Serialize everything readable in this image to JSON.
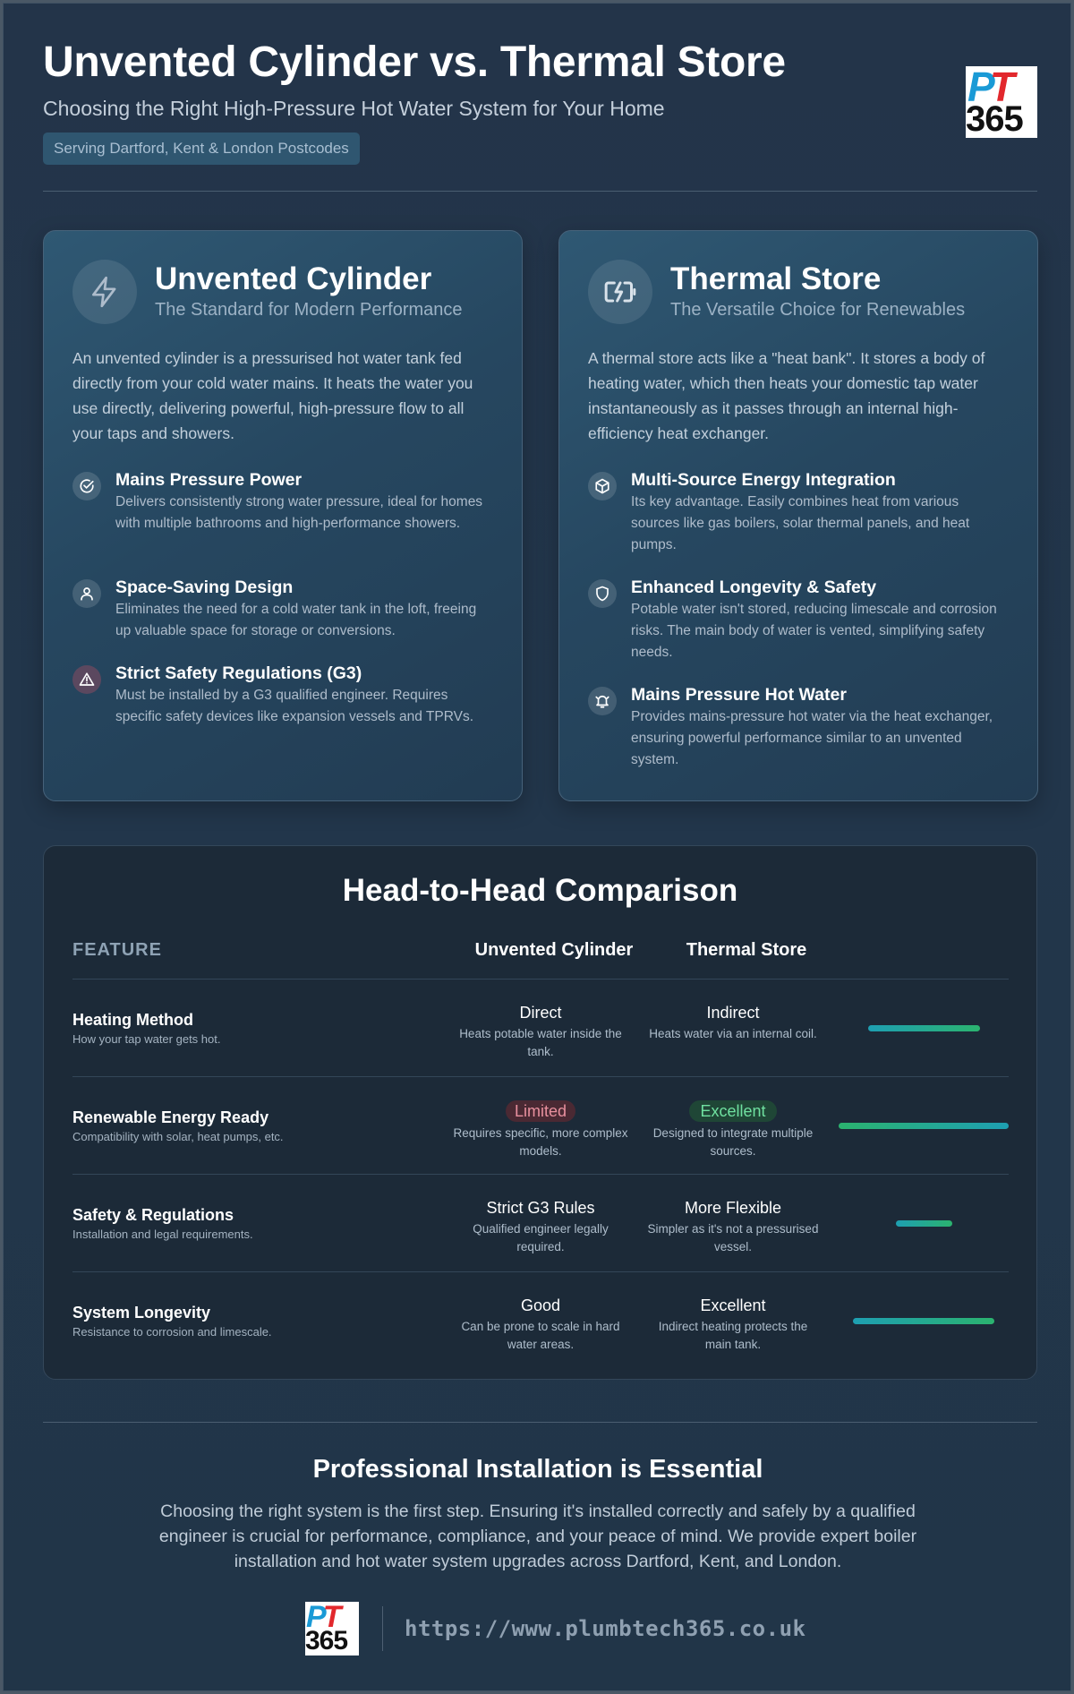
{
  "header": {
    "title": "Unvented Cylinder vs. Thermal Store",
    "subtitle": "Choosing the Right High-Pressure Hot Water System for Your Home",
    "tag": "Serving Dartford, Kent & London Postcodes",
    "logo_top": "PT",
    "logo_bottom": "365"
  },
  "cards": {
    "unvented": {
      "icon": "lightning-icon",
      "title": "Unvented Cylinder",
      "subtitle": "The Standard for Modern Performance",
      "description": "An unvented cylinder is a pressurised hot water tank fed directly from your cold water mains. It heats the water you use directly, delivering powerful, high-pressure flow to all your taps and showers.",
      "features": [
        {
          "icon": "check-circle-icon",
          "title": "Mains Pressure Power",
          "desc": "Delivers consistently strong water pressure, ideal for homes with multiple bathrooms and high-performance showers."
        },
        {
          "icon": "user-icon",
          "title": "Space-Saving Design",
          "desc": "Eliminates the need for a cold water tank in the loft, freeing up valuable space for storage or conversions."
        },
        {
          "icon": "warning-icon",
          "title": "Strict Safety Regulations (G3)",
          "desc": "Must be installed by a G3 qualified engineer. Requires specific safety devices like expansion vessels and TPRVs."
        }
      ]
    },
    "thermal": {
      "icon": "battery-charging-icon",
      "title": "Thermal Store",
      "subtitle": "The Versatile Choice for Renewables",
      "description": "A thermal store acts like a \"heat bank\". It stores a body of heating water, which then heats your domestic tap water instantaneously as it passes through an internal high-efficiency heat exchanger.",
      "features": [
        {
          "icon": "cube-icon",
          "title": "Multi-Source Energy Integration",
          "desc": "Its key advantage. Easily combines heat from various sources like gas boilers, solar thermal panels, and heat pumps."
        },
        {
          "icon": "shield-icon",
          "title": "Enhanced Longevity & Safety",
          "desc": "Potable water isn't stored, reducing limescale and corrosion risks. The main body of water is vented, simplifying safety needs."
        },
        {
          "icon": "bell-icon",
          "title": "Mains Pressure Hot Water",
          "desc": "Provides mains-pressure hot water via the heat exchanger, ensuring powerful performance similar to an unvented system."
        }
      ]
    }
  },
  "comparison": {
    "title": "Head-to-Head Comparison",
    "headers": {
      "feature": "FEATURE",
      "col1": "Unvented Cylinder",
      "col2": "Thermal Store"
    },
    "rows": [
      {
        "name": "Heating Method",
        "desc": "How your tap water gets hot.",
        "a_val": "Direct",
        "a_desc": "Heats potable water inside the tank.",
        "b_val": "Indirect",
        "b_desc": "Heats water via an internal coil.",
        "bar_fraction": 0.66
      },
      {
        "name": "Renewable Energy Ready",
        "desc": "Compatibility with solar, heat pumps, etc.",
        "a_val": "Limited",
        "a_desc": "Requires specific, more complex models.",
        "b_val": "Excellent",
        "b_desc": "Designed to integrate multiple sources.",
        "bar_fraction": 1.0
      },
      {
        "name": "Safety & Regulations",
        "desc": "Installation and legal requirements.",
        "a_val": "Strict G3 Rules",
        "a_desc": "Qualified engineer legally required.",
        "b_val": "More Flexible",
        "b_desc": "Simpler as it's not a pressurised vessel.",
        "bar_fraction": 0.33
      },
      {
        "name": "System Longevity",
        "desc": "Resistance to corrosion and limescale.",
        "a_val": "Good",
        "a_desc": "Can be prone to scale in hard water areas.",
        "b_val": "Excellent",
        "b_desc": "Indirect heating protects the main tank.",
        "bar_fraction": 0.83
      }
    ]
  },
  "footer": {
    "title": "Professional Installation is Essential",
    "text": "Choosing the right system is the first step. Ensuring it's installed correctly and safely by a qualified engineer is crucial for performance, compliance, and your peace of mind. We provide expert boiler installation and hot water system upgrades across Dartford, Kent, and London.",
    "url": "https://www.plumbtech365.co.uk"
  },
  "colors": {
    "limited_pill": "#e8909e",
    "excellent_pill": "#6fe0a0",
    "bar_start": "#1e9fb2",
    "bar_end": "#2bb36f"
  }
}
